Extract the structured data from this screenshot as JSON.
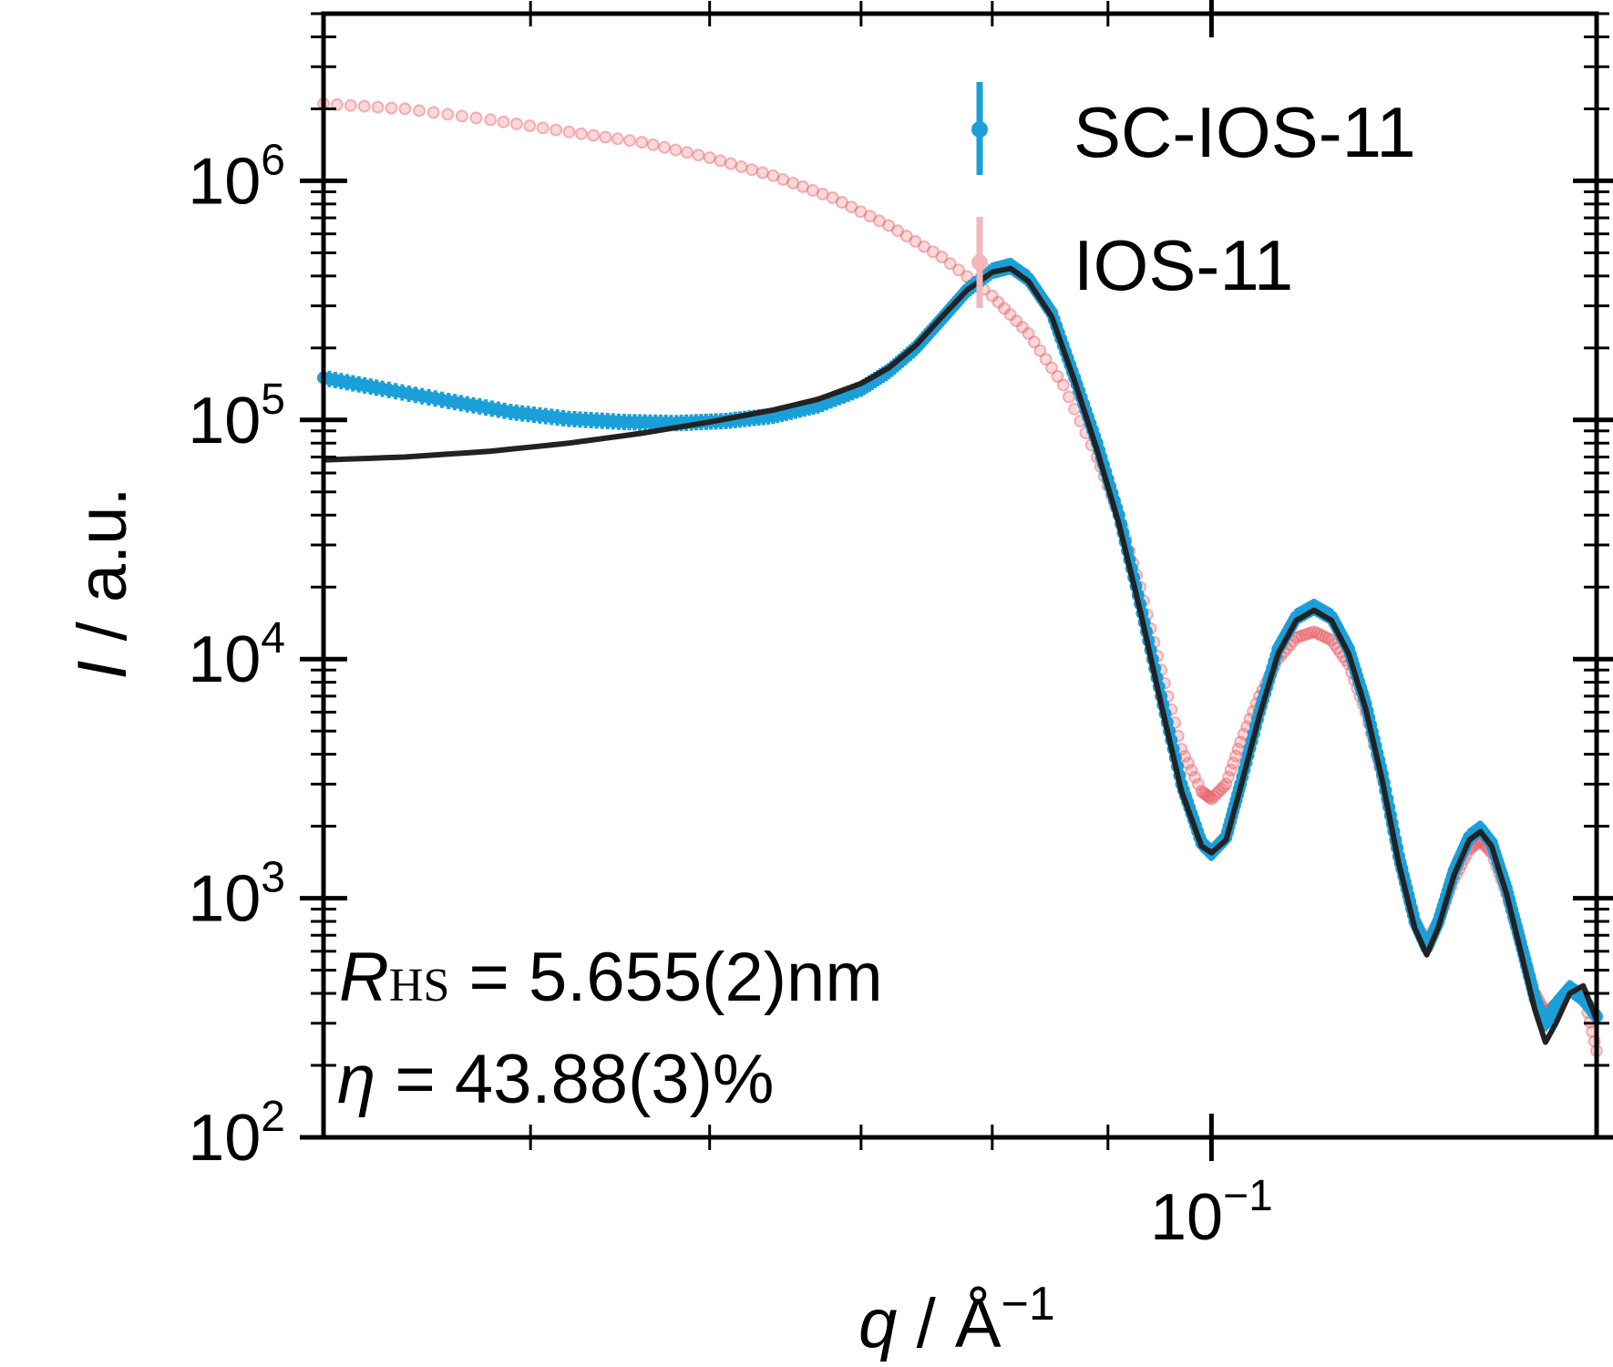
{
  "chart_data": {
    "type": "scatter",
    "title": "",
    "xlabel": {
      "symbol": "q",
      "sep": " / ",
      "unit": "Å",
      "exp": "−1"
    },
    "ylabel": {
      "symbol": "I",
      "sep": " / ",
      "unit": "a.u."
    },
    "x_scale": "log",
    "y_scale": "log",
    "xlim": [
      0.0405,
      0.148
    ],
    "ylim": [
      100,
      5000000
    ],
    "x_tick_labels": [
      {
        "value": 0.1,
        "base": "10",
        "exp": "−1"
      }
    ],
    "y_tick_labels": [
      {
        "value": 100,
        "base": "10",
        "exp": "2"
      },
      {
        "value": 1000,
        "base": "10",
        "exp": "3"
      },
      {
        "value": 10000,
        "base": "10",
        "exp": "4"
      },
      {
        "value": 100000,
        "base": "10",
        "exp": "5"
      },
      {
        "value": 1000000,
        "base": "10",
        "exp": "6"
      }
    ],
    "grid": false,
    "legend_position": "top-right",
    "series": [
      {
        "name": "SC-IOS-11",
        "color": "#1a9fd8",
        "style": "markers-with-errorbars",
        "points": [
          [
            0.0405,
            150000
          ],
          [
            0.043,
            135000
          ],
          [
            0.046,
            120000
          ],
          [
            0.049,
            108000
          ],
          [
            0.052,
            101000
          ],
          [
            0.055,
            98000
          ],
          [
            0.058,
            97000
          ],
          [
            0.061,
            99000
          ],
          [
            0.064,
            104000
          ],
          [
            0.067,
            115000
          ],
          [
            0.07,
            135000
          ],
          [
            0.072,
            160000
          ],
          [
            0.074,
            200000
          ],
          [
            0.076,
            265000
          ],
          [
            0.078,
            350000
          ],
          [
            0.08,
            420000
          ],
          [
            0.0815,
            440000
          ],
          [
            0.083,
            390000
          ],
          [
            0.085,
            280000
          ],
          [
            0.087,
            150000
          ],
          [
            0.089,
            80000
          ],
          [
            0.091,
            40000
          ],
          [
            0.093,
            17000
          ],
          [
            0.095,
            7000
          ],
          [
            0.097,
            3000
          ],
          [
            0.099,
            1700
          ],
          [
            0.1,
            1550
          ],
          [
            0.1015,
            1800
          ],
          [
            0.103,
            3000
          ],
          [
            0.105,
            6000
          ],
          [
            0.107,
            11000
          ],
          [
            0.109,
            15000
          ],
          [
            0.111,
            16500
          ],
          [
            0.113,
            15000
          ],
          [
            0.115,
            11000
          ],
          [
            0.117,
            6500
          ],
          [
            0.119,
            3300
          ],
          [
            0.121,
            1500
          ],
          [
            0.123,
            800
          ],
          [
            0.1245,
            620
          ],
          [
            0.126,
            800
          ],
          [
            0.128,
            1300
          ],
          [
            0.13,
            1800
          ],
          [
            0.1315,
            1950
          ],
          [
            0.133,
            1700
          ],
          [
            0.135,
            1100
          ],
          [
            0.137,
            650
          ],
          [
            0.139,
            380
          ],
          [
            0.1405,
            300
          ],
          [
            0.142,
            360
          ],
          [
            0.144,
            420
          ],
          [
            0.146,
            380
          ],
          [
            0.148,
            320
          ]
        ]
      },
      {
        "name": "IOS-11",
        "color": "#e8636b",
        "style": "faded-markers",
        "points": [
          [
            0.0405,
            2100000
          ],
          [
            0.044,
            2000000
          ],
          [
            0.048,
            1800000
          ],
          [
            0.052,
            1600000
          ],
          [
            0.056,
            1450000
          ],
          [
            0.06,
            1250000
          ],
          [
            0.064,
            1050000
          ],
          [
            0.068,
            850000
          ],
          [
            0.072,
            650000
          ],
          [
            0.076,
            480000
          ],
          [
            0.08,
            330000
          ],
          [
            0.083,
            230000
          ],
          [
            0.086,
            140000
          ],
          [
            0.089,
            70000
          ],
          [
            0.091,
            40000
          ],
          [
            0.093,
            20000
          ],
          [
            0.095,
            9000
          ],
          [
            0.097,
            4200
          ],
          [
            0.099,
            2800
          ],
          [
            0.1,
            2600
          ],
          [
            0.1015,
            3000
          ],
          [
            0.103,
            4500
          ],
          [
            0.105,
            7000
          ],
          [
            0.107,
            10000
          ],
          [
            0.109,
            12300
          ],
          [
            0.111,
            13000
          ],
          [
            0.113,
            12000
          ],
          [
            0.115,
            9500
          ],
          [
            0.117,
            6000
          ],
          [
            0.119,
            3200
          ],
          [
            0.121,
            1500
          ],
          [
            0.123,
            800
          ],
          [
            0.1245,
            650
          ],
          [
            0.126,
            800
          ],
          [
            0.128,
            1200
          ],
          [
            0.13,
            1600
          ],
          [
            0.1315,
            1750
          ],
          [
            0.133,
            1550
          ],
          [
            0.135,
            1050
          ],
          [
            0.137,
            650
          ],
          [
            0.139,
            400
          ],
          [
            0.1405,
            330
          ],
          [
            0.142,
            360
          ],
          [
            0.144,
            420
          ],
          [
            0.146,
            400
          ],
          [
            0.148,
            230
          ]
        ]
      },
      {
        "name": "",
        "color": "#222222",
        "style": "line",
        "points": [
          [
            0.0405,
            68000
          ],
          [
            0.044,
            70000
          ],
          [
            0.048,
            74000
          ],
          [
            0.052,
            80000
          ],
          [
            0.056,
            88000
          ],
          [
            0.06,
            98000
          ],
          [
            0.064,
            110000
          ],
          [
            0.067,
            122000
          ],
          [
            0.07,
            142000
          ],
          [
            0.072,
            165000
          ],
          [
            0.074,
            205000
          ],
          [
            0.076,
            270000
          ],
          [
            0.078,
            350000
          ],
          [
            0.08,
            415000
          ],
          [
            0.0815,
            430000
          ],
          [
            0.083,
            380000
          ],
          [
            0.085,
            270000
          ],
          [
            0.087,
            145000
          ],
          [
            0.089,
            75000
          ],
          [
            0.091,
            37000
          ],
          [
            0.093,
            16000
          ],
          [
            0.095,
            6500
          ],
          [
            0.097,
            2800
          ],
          [
            0.099,
            1650
          ],
          [
            0.1,
            1550
          ],
          [
            0.1015,
            1750
          ],
          [
            0.103,
            2900
          ],
          [
            0.105,
            5800
          ],
          [
            0.107,
            10500
          ],
          [
            0.109,
            14500
          ],
          [
            0.111,
            16000
          ],
          [
            0.113,
            14500
          ],
          [
            0.115,
            10500
          ],
          [
            0.117,
            6200
          ],
          [
            0.119,
            3100
          ],
          [
            0.121,
            1400
          ],
          [
            0.123,
            750
          ],
          [
            0.1245,
            580
          ],
          [
            0.126,
            760
          ],
          [
            0.128,
            1250
          ],
          [
            0.13,
            1750
          ],
          [
            0.1315,
            1900
          ],
          [
            0.133,
            1650
          ],
          [
            0.135,
            1050
          ],
          [
            0.137,
            600
          ],
          [
            0.139,
            340
          ],
          [
            0.1405,
            250
          ],
          [
            0.142,
            300
          ],
          [
            0.144,
            400
          ],
          [
            0.146,
            430
          ],
          [
            0.148,
            310
          ]
        ]
      }
    ],
    "annotations": [
      {
        "symbol": "R",
        "sub": "HS",
        "text": " = 5.655(2)nm"
      },
      {
        "symbol": "η",
        "sub": "",
        "text": " = 43.88(3)%"
      }
    ]
  }
}
